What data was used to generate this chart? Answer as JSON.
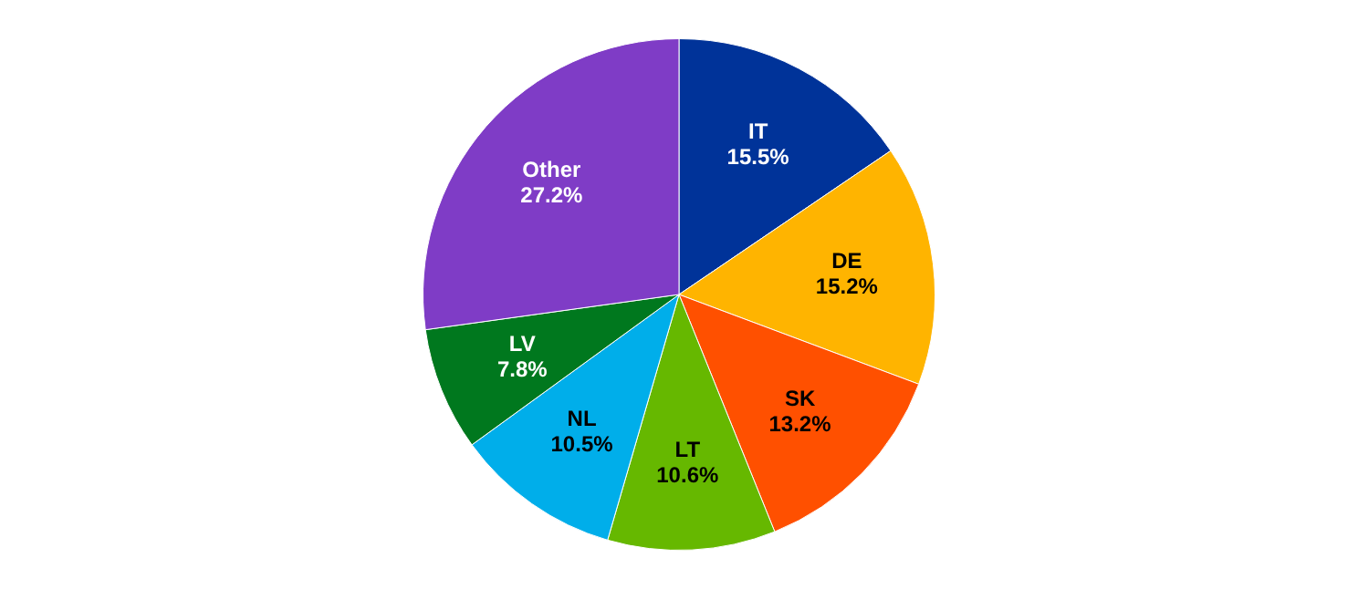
{
  "chart_data": {
    "type": "pie",
    "categories": [
      "IT",
      "DE",
      "SK",
      "LT",
      "NL",
      "LV",
      "Other"
    ],
    "values": [
      15.5,
      15.2,
      13.2,
      10.6,
      10.5,
      7.8,
      27.2
    ],
    "colors": [
      "#003399",
      "#ffb400",
      "#ff5000",
      "#66b800",
      "#00aeea",
      "#00781e",
      "#7f3cc6"
    ],
    "value_labels": [
      "15.5%",
      "15.2%",
      "13.2%",
      "10.6%",
      "10.5%",
      "7.8%",
      "27.2%"
    ],
    "legend": false
  }
}
